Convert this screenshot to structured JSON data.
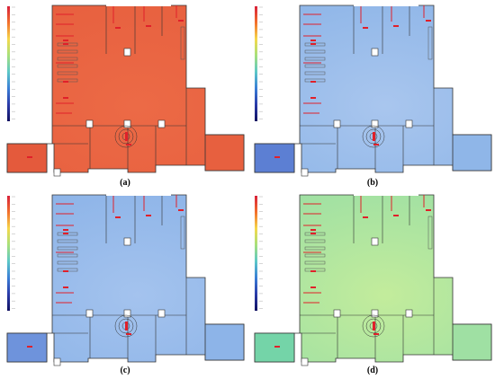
{
  "colors": {
    "wall": "#333333",
    "red_marker": "#e0202a",
    "scale_gradient": [
      "#d8203a",
      "#f2702c",
      "#f5d84a",
      "#a6e07c",
      "#5cc8c8",
      "#3a7ed6",
      "#2a3aa8",
      "#101060"
    ]
  },
  "panels": [
    {
      "id": "a",
      "caption": "(a)",
      "floor_color": "#e7603f",
      "wing_color": "#e45a3c",
      "floor_color2": "#ec6a46"
    },
    {
      "id": "b",
      "caption": "(b)",
      "floor_color": "#8fb6e8",
      "wing_color": "#5c7fd3",
      "floor_color2": "#a9c6ee"
    },
    {
      "id": "c",
      "caption": "(c)",
      "floor_color": "#8db4e8",
      "wing_color": "#6e93dc",
      "floor_color2": "#a4c3ee"
    },
    {
      "id": "d",
      "caption": "(d)",
      "floor_color": "#9fe0a3",
      "wing_color": "#74d4a8",
      "floor_color2": "#c3ec9c"
    }
  ]
}
